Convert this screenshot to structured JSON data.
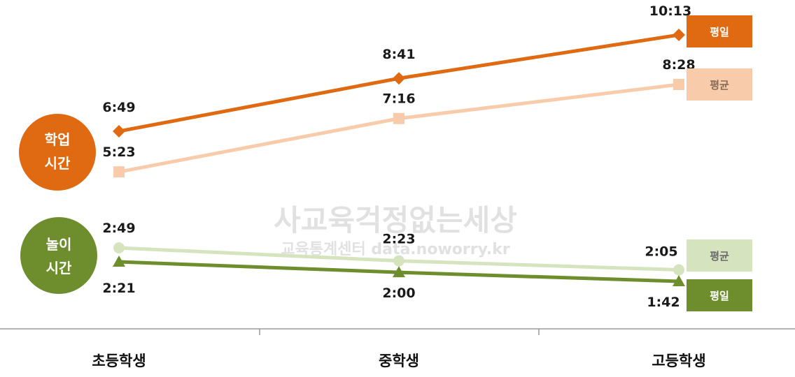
{
  "watermark": {
    "line1": "사교육걱정없는세상",
    "line2": "교육통계센터 data.noworry.kr"
  },
  "colors": {
    "study_weekday": "#E06A12",
    "study_avg": "#F8CCAA",
    "play_avg": "#D5E4BE",
    "play_weekday": "#6E8E2E",
    "study_badge": "#E06A12",
    "play_badge": "#6E8E2E",
    "axis": "#999999"
  },
  "groups": [
    {
      "id": "study",
      "label_line1": "학업",
      "label_line2": "시간"
    },
    {
      "id": "play",
      "label_line1": "놀이",
      "label_line2": "시간"
    }
  ],
  "chart_data": {
    "type": "line",
    "categories": [
      "초등학생",
      "중학생",
      "고등학생"
    ],
    "series": [
      {
        "name": "평일",
        "group": "학업 시간",
        "marker": "diamond",
        "color": "#E06A12",
        "values": [
          "6:49",
          "8:41",
          "10:13"
        ],
        "minutes": [
          409,
          521,
          613
        ]
      },
      {
        "name": "평균",
        "group": "학업 시간",
        "marker": "square",
        "color": "#F8CCAA",
        "values": [
          "5:23",
          "7:16",
          "8:28"
        ],
        "minutes": [
          323,
          436,
          508
        ]
      },
      {
        "name": "평균",
        "group": "놀이 시간",
        "marker": "circle",
        "color": "#D5E4BE",
        "values": [
          "2:49",
          "2:23",
          "2:05"
        ],
        "minutes": [
          169,
          143,
          125
        ]
      },
      {
        "name": "평일",
        "group": "놀이 시간",
        "marker": "triangle",
        "color": "#6E8E2E",
        "values": [
          "2:21",
          "2:00",
          "1:42"
        ],
        "minutes": [
          141,
          120,
          102
        ]
      }
    ],
    "grid": false
  }
}
